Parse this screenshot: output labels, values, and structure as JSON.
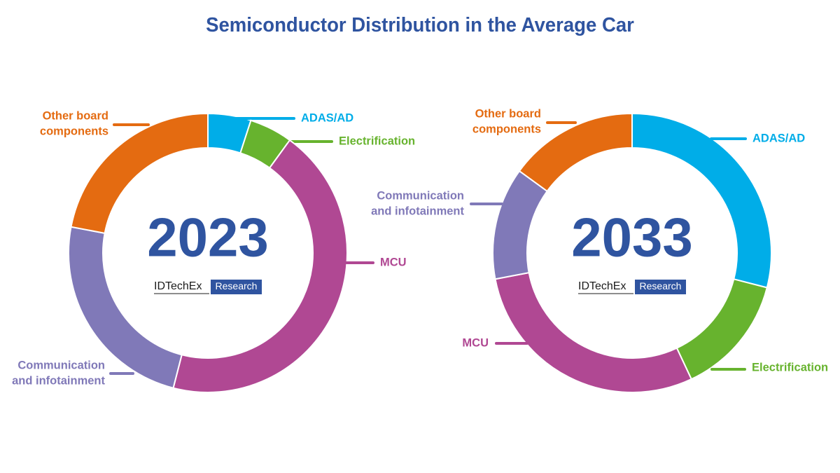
{
  "title": "Semiconductor Distribution in the Average Car",
  "colors": {
    "title": "#2f54a0",
    "year": "#2f54a0",
    "ADAS/AD": "#00ade8",
    "Electrification": "#67b32e",
    "MCU": "#b04893",
    "Communication and infotainment": "#8079b8",
    "Other board components": "#e46b11"
  },
  "brand": {
    "name": "IDTechEx",
    "tag": "Research",
    "tag_color": "#2f54a0"
  },
  "chart_data": [
    {
      "type": "pie",
      "style": "donut",
      "center_label": "2023",
      "start": "12 o'clock, clockwise",
      "slices": [
        {
          "label": "ADAS/AD",
          "lines": [
            "ADAS/AD"
          ],
          "value": 5
        },
        {
          "label": "Electrification",
          "lines": [
            "Electrification"
          ],
          "value": 5
        },
        {
          "label": "MCU",
          "lines": [
            "MCU"
          ],
          "value": 44
        },
        {
          "label": "Communication and infotainment",
          "lines": [
            "Communication",
            "and infotainment"
          ],
          "value": 24
        },
        {
          "label": "Other board components",
          "lines": [
            "Other board",
            "components"
          ],
          "value": 22
        }
      ]
    },
    {
      "type": "pie",
      "style": "donut",
      "center_label": "2033",
      "start": "12 o'clock, clockwise",
      "slices": [
        {
          "label": "ADAS/AD",
          "lines": [
            "ADAS/AD"
          ],
          "value": 29
        },
        {
          "label": "Electrification",
          "lines": [
            "Electrification"
          ],
          "value": 14
        },
        {
          "label": "MCU",
          "lines": [
            "MCU"
          ],
          "value": 29
        },
        {
          "label": "Communication and infotainment",
          "lines": [
            "Communication",
            "and infotainment"
          ],
          "value": 13
        },
        {
          "label": "Other board components",
          "lines": [
            "Other board",
            "components"
          ],
          "value": 15
        }
      ]
    }
  ]
}
